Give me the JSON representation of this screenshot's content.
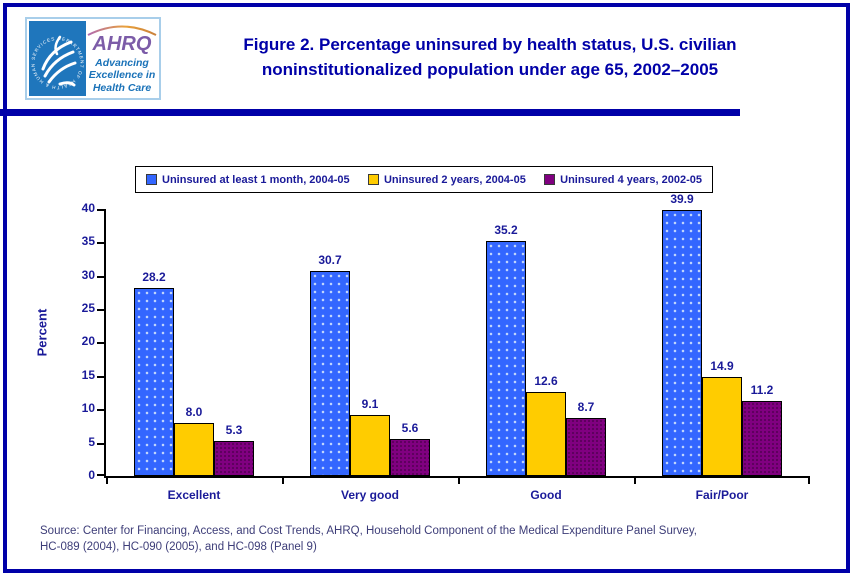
{
  "header": {
    "logo": {
      "hhs_seal_text": "DEPARTMENT OF HEALTH & HUMAN SERVICES · USA",
      "ahrq_acronym": "AHRQ",
      "tagline_line1": "Advancing",
      "tagline_line2": "Excellence in",
      "tagline_line3": "Health Care"
    },
    "title": "Figure 2. Percentage uninsured by health status, U.S. civilian noninstitutionalized population under age 65, 2002–2005"
  },
  "chart_data": {
    "type": "bar",
    "categories": [
      "Excellent",
      "Very good",
      "Good",
      "Fair/Poor"
    ],
    "series": [
      {
        "name": "Uninsured at least 1 month, 2004-05",
        "color": "#3366FF",
        "pattern": "dots-light",
        "values": [
          28.2,
          30.7,
          35.2,
          39.9
        ]
      },
      {
        "name": "Uninsured 2 years, 2004-05",
        "color": "#FFCC00",
        "pattern": "solid",
        "values": [
          8.0,
          9.1,
          12.6,
          14.9
        ]
      },
      {
        "name": "Uninsured 4 years, 2002-05",
        "color": "#800080",
        "pattern": "dots-dark",
        "values": [
          5.3,
          5.6,
          8.7,
          11.2
        ]
      }
    ],
    "xlabel": "",
    "ylabel": "Percent",
    "ylim": [
      0,
      40
    ],
    "ytick_step": 5,
    "grid": false,
    "legend_position": "top",
    "value_labels_shown": true
  },
  "source": {
    "line1": "Source: Center for Financing, Access, and Cost Trends, AHRQ, Household Component of the Medical Expenditure Panel Survey,",
    "line2": "HC-089 (2004), HC-090 (2005), and HC-098 (Panel 9)"
  },
  "colors": {
    "page_border": "#0000A8",
    "divider_bar": "#0000A8",
    "title_text": "#0000A8",
    "chart_text": "#1A1A99",
    "source_text": "#3D3D78",
    "hhs_logo_blue": "#1F76BC",
    "ahrq_purple": "#7C5CA8",
    "ahrq_tagline_blue": "#1A72B8"
  }
}
